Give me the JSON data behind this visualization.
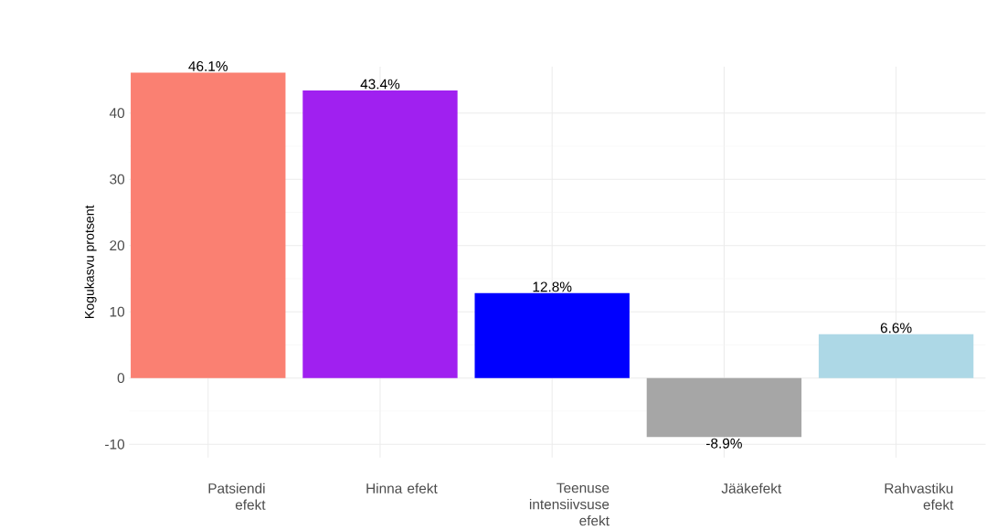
{
  "chart_data": {
    "type": "bar",
    "ylabel": "Kogukasvu protsent",
    "categories": [
      "Patsiendi efekt",
      "Hinna efekt",
      "Teenuse intensiivsuse efekt",
      "Jääkefekt",
      "Rahvastiku efekt"
    ],
    "values": [
      46.1,
      43.4,
      12.8,
      -8.9,
      6.6
    ],
    "colors": [
      "#fa8072",
      "#a020f0",
      "#0000ff",
      "#a6a6a6",
      "#add8e6"
    ],
    "value_labels": [
      "46.1%",
      "43.4%",
      "12.8%",
      "-8.9%",
      "6.6%"
    ],
    "ylim": [
      -12,
      47
    ],
    "yticks": [
      -10,
      0,
      10,
      20,
      30,
      40
    ],
    "grid": true
  }
}
